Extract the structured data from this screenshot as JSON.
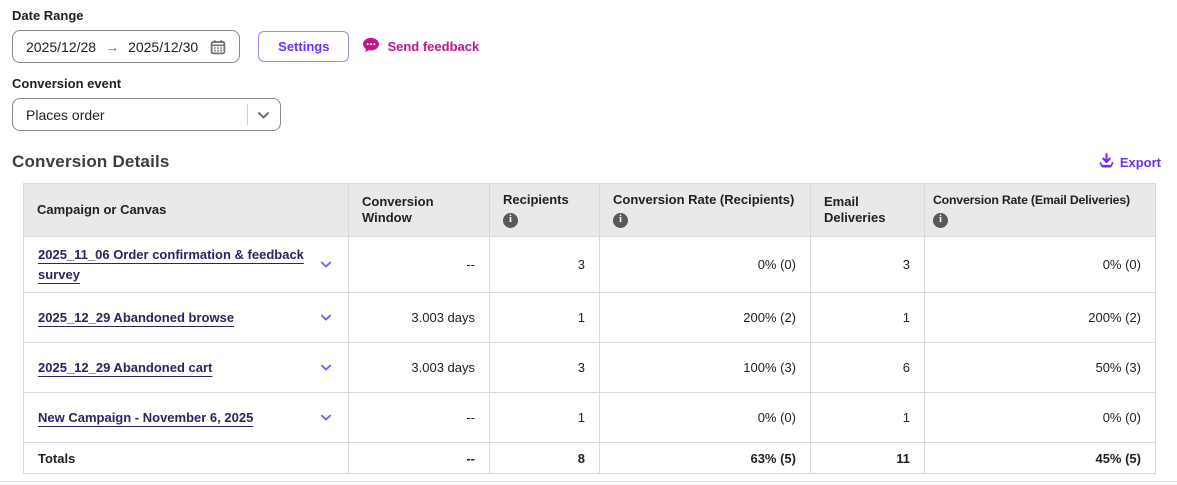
{
  "colors": {
    "accent_purple": "#6d2ef5",
    "accent_purple_border": "#a882f7",
    "magenta": "#c0168c",
    "link_navy": "#2d2363",
    "chevron_purple": "#8a5cf6",
    "icon_gray": "#6e6e6e",
    "header_bg": "#e9e9e9",
    "table_border": "#d9d9d9"
  },
  "icons": {
    "date_range": "calendar-icon",
    "date_separator": "arrow-right-icon",
    "send_feedback": "speech-bubble-icon",
    "conversion_event": "chevron-down-icon",
    "export": "download-icon",
    "column_info": "info-icon",
    "row_expand": "chevron-down-icon"
  },
  "filters": {
    "date_range_label": "Date Range",
    "date_start": "2025/12/28",
    "date_separator": "→",
    "date_end": "2025/12/30",
    "settings_label": "Settings",
    "send_feedback_label": "Send feedback",
    "conversion_event_label": "Conversion event",
    "conversion_event_value": "Places order"
  },
  "section": {
    "title": "Conversion Details",
    "export_label": "Export"
  },
  "table": {
    "columns": [
      {
        "label": "Campaign or Canvas",
        "info": false
      },
      {
        "label": "Conversion Window",
        "info": false
      },
      {
        "label": "Recipients",
        "info": true
      },
      {
        "label": "Conversion Rate (Recipients)",
        "info": true
      },
      {
        "label": "Email Deliveries",
        "info": false
      },
      {
        "label": "Conversion Rate (Email Deliveries)",
        "info": true
      }
    ],
    "rows": [
      {
        "name": "2025_11_06 Order confirmation & feedback survey",
        "window": "--",
        "recipients": "3",
        "rate_recipients": "0% (0)",
        "deliveries": "3",
        "rate_deliveries": "0% (0)"
      },
      {
        "name": "2025_12_29 Abandoned browse",
        "window": "3.003 days",
        "recipients": "1",
        "rate_recipients": "200% (2)",
        "deliveries": "1",
        "rate_deliveries": "200% (2)"
      },
      {
        "name": "2025_12_29 Abandoned cart",
        "window": "3.003 days",
        "recipients": "3",
        "rate_recipients": "100% (3)",
        "deliveries": "6",
        "rate_deliveries": "50% (3)"
      },
      {
        "name": "New Campaign - November 6, 2025",
        "window": "--",
        "recipients": "1",
        "rate_recipients": "0% (0)",
        "deliveries": "1",
        "rate_deliveries": "0% (0)"
      }
    ],
    "totals": {
      "label": "Totals",
      "window": "--",
      "recipients": "8",
      "rate_recipients": "63% (5)",
      "deliveries": "11",
      "rate_deliveries": "45% (5)"
    }
  }
}
